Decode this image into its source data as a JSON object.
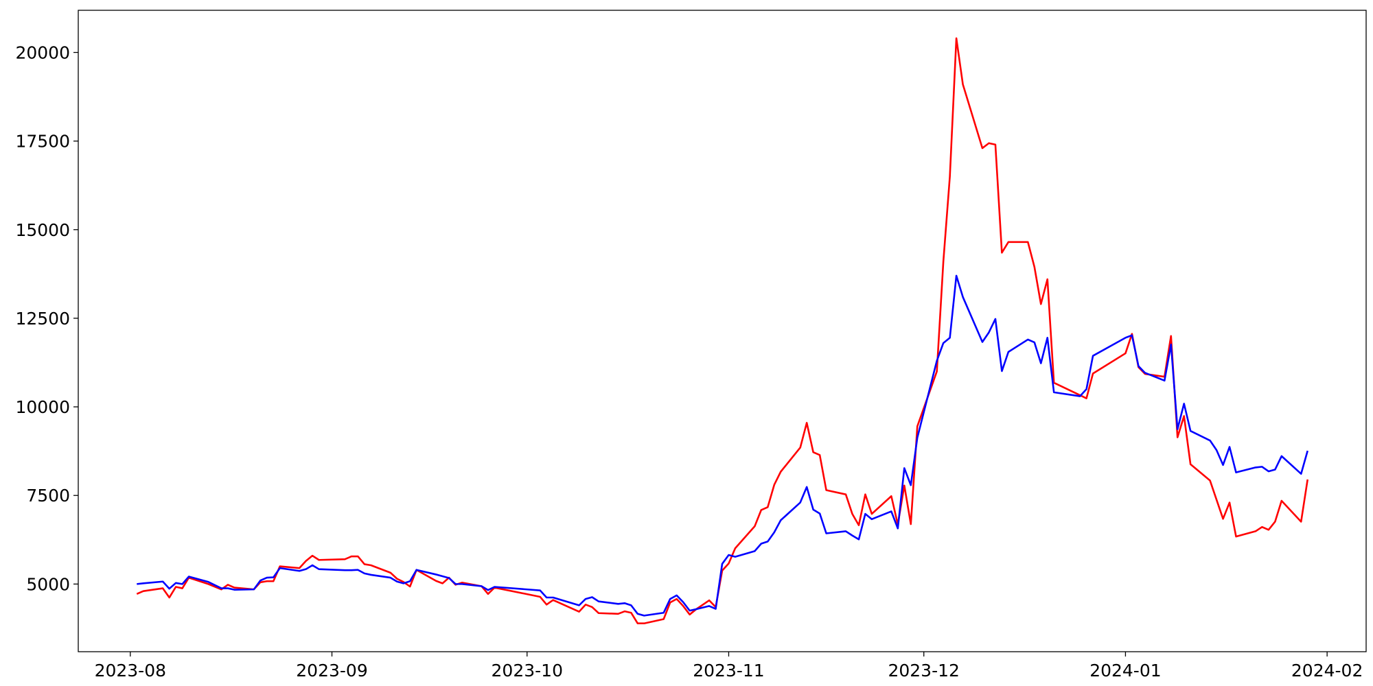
{
  "chart_data": {
    "type": "line",
    "x": [
      "2023-08-02",
      "2023-08-03",
      "2023-08-06",
      "2023-08-07",
      "2023-08-08",
      "2023-08-09",
      "2023-08-10",
      "2023-08-13",
      "2023-08-15",
      "2023-08-16",
      "2023-08-17",
      "2023-08-20",
      "2023-08-21",
      "2023-08-22",
      "2023-08-23",
      "2023-08-24",
      "2023-08-27",
      "2023-08-28",
      "2023-08-29",
      "2023-08-30",
      "2023-09-03",
      "2023-09-04",
      "2023-09-05",
      "2023-09-06",
      "2023-09-07",
      "2023-09-10",
      "2023-09-11",
      "2023-09-12",
      "2023-09-13",
      "2023-09-14",
      "2023-09-17",
      "2023-09-18",
      "2023-09-19",
      "2023-09-20",
      "2023-09-21",
      "2023-09-24",
      "2023-09-25",
      "2023-09-26",
      "2023-10-03",
      "2023-10-04",
      "2023-10-05",
      "2023-10-09",
      "2023-10-10",
      "2023-10-11",
      "2023-10-12",
      "2023-10-15",
      "2023-10-16",
      "2023-10-17",
      "2023-10-18",
      "2023-10-19",
      "2023-10-22",
      "2023-10-23",
      "2023-10-24",
      "2023-10-25",
      "2023-10-26",
      "2023-10-27",
      "2023-10-29",
      "2023-10-30",
      "2023-10-31",
      "2023-11-01",
      "2023-11-02",
      "2023-11-05",
      "2023-11-06",
      "2023-11-07",
      "2023-11-08",
      "2023-11-09",
      "2023-11-12",
      "2023-11-13",
      "2023-11-14",
      "2023-11-15",
      "2023-11-16",
      "2023-11-19",
      "2023-11-20",
      "2023-11-21",
      "2023-11-22",
      "2023-11-23",
      "2023-11-26",
      "2023-11-27",
      "2023-11-28",
      "2023-11-29",
      "2023-11-30",
      "2023-12-03",
      "2023-12-04",
      "2023-12-05",
      "2023-12-06",
      "2023-12-07",
      "2023-12-10",
      "2023-12-11",
      "2023-12-12",
      "2023-12-13",
      "2023-12-14",
      "2023-12-17",
      "2023-12-18",
      "2023-12-19",
      "2023-12-20",
      "2023-12-21",
      "2023-12-25",
      "2023-12-26",
      "2023-12-27",
      "2024-01-01",
      "2024-01-02",
      "2024-01-03",
      "2024-01-04",
      "2024-01-07",
      "2024-01-08",
      "2024-01-09",
      "2024-01-10",
      "2024-01-11",
      "2024-01-14",
      "2024-01-15",
      "2024-01-16",
      "2024-01-17",
      "2024-01-18",
      "2024-01-21",
      "2024-01-22",
      "2024-01-23",
      "2024-01-24",
      "2024-01-25",
      "2024-01-28",
      "2024-01-29"
    ],
    "series": [
      {
        "color": "#ff0000",
        "values": [
          4720,
          4800,
          4880,
          4620,
          4920,
          4880,
          5180,
          5000,
          4850,
          4980,
          4900,
          4850,
          5050,
          5080,
          5080,
          5500,
          5450,
          5650,
          5800,
          5680,
          5700,
          5780,
          5780,
          5560,
          5530,
          5320,
          5150,
          5060,
          4930,
          5400,
          5090,
          5020,
          5180,
          4980,
          5040,
          4940,
          4720,
          4900,
          4640,
          4420,
          4550,
          4220,
          4420,
          4350,
          4180,
          4160,
          4230,
          4190,
          3890,
          3890,
          4010,
          4480,
          4580,
          4380,
          4140,
          4290,
          4540,
          4350,
          5380,
          5580,
          6010,
          6630,
          7090,
          7170,
          7800,
          8170,
          8850,
          9550,
          8720,
          8640,
          7650,
          7530,
          6980,
          6660,
          7530,
          6980,
          7480,
          6680,
          7780,
          6690,
          9450,
          11000,
          14100,
          16500,
          20400,
          19100,
          17300,
          17440,
          17400,
          14350,
          14650,
          14650,
          13950,
          12900,
          13600,
          10680,
          10330,
          10240,
          10940,
          11510,
          12060,
          11120,
          10930,
          10850,
          12000,
          9140,
          9740,
          8380,
          7920,
          7380,
          6840,
          7300,
          6340,
          6490,
          6610,
          6530,
          6760,
          7350,
          6760,
          7950
        ]
      },
      {
        "color": "#0000ff",
        "values": [
          5000,
          5020,
          5070,
          4870,
          5030,
          5000,
          5210,
          5060,
          4880,
          4880,
          4840,
          4850,
          5100,
          5180,
          5190,
          5450,
          5370,
          5420,
          5530,
          5420,
          5390,
          5390,
          5400,
          5300,
          5260,
          5180,
          5070,
          5020,
          5080,
          5400,
          5270,
          5220,
          5170,
          5000,
          5000,
          4940,
          4830,
          4920,
          4820,
          4620,
          4620,
          4400,
          4580,
          4630,
          4510,
          4440,
          4460,
          4400,
          4160,
          4110,
          4190,
          4580,
          4680,
          4490,
          4250,
          4290,
          4380,
          4300,
          5570,
          5820,
          5770,
          5930,
          6140,
          6200,
          6460,
          6800,
          7300,
          7740,
          7100,
          6990,
          6430,
          6490,
          6370,
          6260,
          6980,
          6830,
          7050,
          6570,
          8270,
          7790,
          9130,
          11300,
          11800,
          11950,
          13700,
          13100,
          11830,
          12100,
          12480,
          11010,
          11550,
          11900,
          11820,
          11230,
          11950,
          10410,
          10300,
          10500,
          11440,
          11950,
          12020,
          11150,
          10960,
          10740,
          11760,
          9370,
          10090,
          9320,
          9050,
          8780,
          8360,
          8870,
          8150,
          8290,
          8310,
          8180,
          8230,
          8610,
          8110,
          8760
        ]
      }
    ],
    "xlim": [
      "2023-07-24",
      "2024-02-07"
    ],
    "xticks": [
      {
        "value": "2023-08-01",
        "label": "2023-08"
      },
      {
        "value": "2023-09-01",
        "label": "2023-09"
      },
      {
        "value": "2023-10-01",
        "label": "2023-10"
      },
      {
        "value": "2023-11-01",
        "label": "2023-11"
      },
      {
        "value": "2023-12-01",
        "label": "2023-12"
      },
      {
        "value": "2024-01-01",
        "label": "2024-01"
      },
      {
        "value": "2024-02-01",
        "label": "2024-02"
      }
    ],
    "ylim": [
      3091,
      21190
    ],
    "yticks": [
      5000,
      7500,
      10000,
      12500,
      15000,
      17500,
      20000
    ],
    "grid": false
  }
}
